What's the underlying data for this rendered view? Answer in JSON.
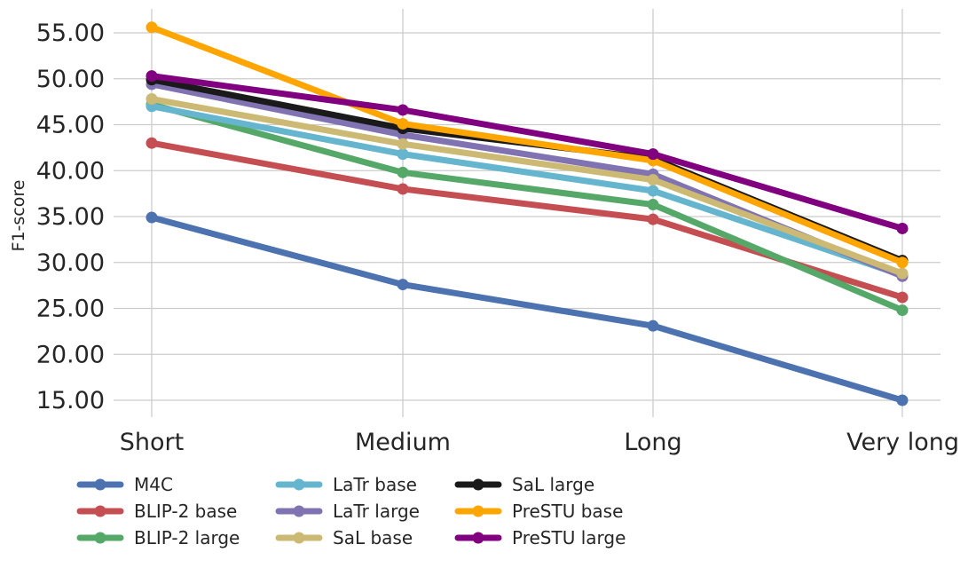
{
  "chart_data": {
    "type": "line",
    "title": "",
    "xlabel": "",
    "ylabel": "F1-score",
    "categories": [
      "Short",
      "Medium",
      "Long",
      "Very long"
    ],
    "ylim": [
      13.5,
      57.5
    ],
    "yticks": [
      15,
      20,
      25,
      30,
      35,
      40,
      45,
      50,
      55
    ],
    "ytick_labels": [
      "15.00",
      "20.00",
      "25.00",
      "30.00",
      "35.00",
      "40.00",
      "45.00",
      "50.00",
      "55.00"
    ],
    "grid": true,
    "legend_position": "bottom",
    "series": [
      {
        "name": "M4C",
        "color": "#4c72b0",
        "values": [
          34.9,
          27.6,
          23.1,
          15.0
        ]
      },
      {
        "name": "BLIP-2 base",
        "color": "#c44e52",
        "values": [
          43.0,
          38.0,
          34.7,
          26.2
        ]
      },
      {
        "name": "BLIP-2 large",
        "color": "#55a868",
        "values": [
          47.2,
          39.8,
          36.3,
          24.8
        ]
      },
      {
        "name": "LaTr base",
        "color": "#64b5cd",
        "values": [
          47.0,
          41.8,
          37.8,
          28.6
        ]
      },
      {
        "name": "LaTr large",
        "color": "#8172b2",
        "values": [
          49.4,
          43.9,
          39.6,
          28.5
        ]
      },
      {
        "name": "SaL base",
        "color": "#ccb974",
        "values": [
          47.8,
          42.9,
          39.0,
          28.8
        ]
      },
      {
        "name": "SaL large",
        "color": "#1a1a1a",
        "values": [
          49.9,
          44.6,
          41.3,
          30.2
        ]
      },
      {
        "name": "PreSTU base",
        "color": "#ffa500",
        "values": [
          55.6,
          45.1,
          41.1,
          30.0
        ]
      },
      {
        "name": "PreSTU large",
        "color": "#800080",
        "values": [
          50.3,
          46.6,
          41.8,
          33.7
        ]
      }
    ]
  }
}
